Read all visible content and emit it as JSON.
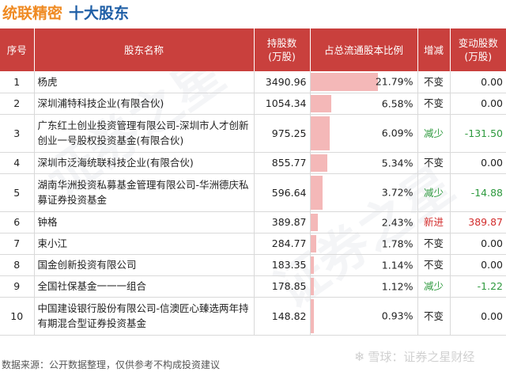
{
  "title": {
    "brand": "统联精密",
    "sub": "十大股东"
  },
  "headers": {
    "idx": "序号",
    "name": "股东名称",
    "shares": "持股数\n(万股)",
    "ratio": "占总流通股本比例",
    "change_type": "增减",
    "change_amt": "变动股数\n(万股)"
  },
  "rows": [
    {
      "idx": "1",
      "name": "杨虎",
      "shares": "3490.96",
      "ratio": "21.79%",
      "ratio_value": 21.79,
      "change": "不变",
      "change_amt": "0.00",
      "tone": "none"
    },
    {
      "idx": "2",
      "name": "深圳浦特科技企业(有限合伙)",
      "shares": "1054.34",
      "ratio": "6.58%",
      "ratio_value": 6.58,
      "change": "不变",
      "change_amt": "0.00",
      "tone": "none"
    },
    {
      "idx": "3",
      "name": "广东红土创业投资管理有限公司-深圳市人才创新创业一号股权投资基金(有限合伙)",
      "shares": "975.25",
      "ratio": "6.09%",
      "ratio_value": 6.09,
      "change": "减少",
      "change_amt": "-131.50",
      "tone": "green"
    },
    {
      "idx": "4",
      "name": "深圳市泛海统联科技企业(有限合伙)",
      "shares": "855.77",
      "ratio": "5.34%",
      "ratio_value": 5.34,
      "change": "不变",
      "change_amt": "0.00",
      "tone": "none"
    },
    {
      "idx": "5",
      "name": "湖南华洲投资私募基金管理有限公司-华洲德庆私募证券投资基金",
      "shares": "596.64",
      "ratio": "3.72%",
      "ratio_value": 3.72,
      "change": "减少",
      "change_amt": "-14.88",
      "tone": "green"
    },
    {
      "idx": "6",
      "name": "钟格",
      "shares": "389.87",
      "ratio": "2.43%",
      "ratio_value": 2.43,
      "change": "新进",
      "change_amt": "389.87",
      "tone": "red"
    },
    {
      "idx": "7",
      "name": "束小江",
      "shares": "284.77",
      "ratio": "1.78%",
      "ratio_value": 1.78,
      "change": "不变",
      "change_amt": "0.00",
      "tone": "none"
    },
    {
      "idx": "8",
      "name": "国金创新投资有限公司",
      "shares": "183.35",
      "ratio": "1.14%",
      "ratio_value": 1.14,
      "change": "不变",
      "change_amt": "0.00",
      "tone": "none"
    },
    {
      "idx": "9",
      "name": "全国社保基金一一一组合",
      "shares": "178.85",
      "ratio": "1.12%",
      "ratio_value": 1.12,
      "change": "减少",
      "change_amt": "-1.22",
      "tone": "green"
    },
    {
      "idx": "10",
      "name": "中国建设银行股份有限公司-信澳匠心臻选两年持有期混合型证券投资基金",
      "shares": "148.82",
      "ratio": "0.93%",
      "ratio_value": 0.93,
      "change": "不变",
      "change_amt": "0.00",
      "tone": "none"
    }
  ],
  "footer": "数据来源：公开数据整理，仅供参考不构成投资建议",
  "watermark": {
    "logo_text": "雪球：证券之星财经",
    "bg_text": "证券之星"
  },
  "colors": {
    "header_bg": "#c9403d",
    "bar": "#f4b8b8",
    "brand": "#ef8a22",
    "sub": "#1f5fa6",
    "decrease": "#2f9a3f",
    "increase": "#d22d2d"
  }
}
